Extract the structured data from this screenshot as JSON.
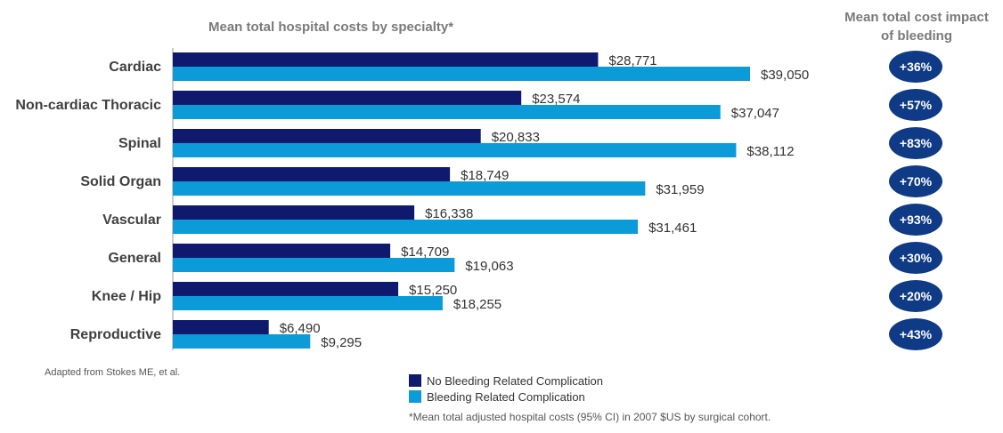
{
  "colors": {
    "no_bleeding": "#0f1a6e",
    "bleeding": "#0b9bd8",
    "badge": "#0f3a86"
  },
  "chart_data": {
    "type": "bar",
    "orientation": "horizontal",
    "title": "Mean total hospital costs by specialty*",
    "categories": [
      "Cardiac",
      "Non-cardiac Thoracic",
      "Spinal",
      "Solid Organ",
      "Vascular",
      "General",
      "Knee / Hip",
      "Reproductive"
    ],
    "series": [
      {
        "name": "No Bleeding Related Complication",
        "values": [
          28771,
          23574,
          20833,
          18749,
          16338,
          14709,
          15250,
          6490
        ],
        "labels": [
          "$28,771",
          "$23,574",
          "$20,833",
          "$18,749",
          "$16,338",
          "$14,709",
          "$15,250",
          "$6,490"
        ]
      },
      {
        "name": "Bleeding Related Complication",
        "values": [
          39050,
          37047,
          38112,
          31959,
          31461,
          19063,
          18255,
          9295
        ],
        "labels": [
          "$39,050",
          "$37,047",
          "$38,112",
          "$31,959",
          "$31,461",
          "$19,063",
          "$18,255",
          "$9,295"
        ]
      }
    ],
    "xlim": [
      0,
      40000
    ],
    "legend_position": "bottom",
    "impact_title": "Mean total cost impact of bleeding",
    "impact_values": [
      "+36%",
      "+57%",
      "+83%",
      "+70%",
      "+93%",
      "+30%",
      "+20%",
      "+43%"
    ]
  },
  "legend": {
    "no_bleeding": "No Bleeding Related Complication",
    "bleeding": "Bleeding Related Complication"
  },
  "source": "Adapted from Stokes ME, et al.",
  "footnote": "*Mean total adjusted hospital costs (95% CI) in 2007 $US by surgical cohort."
}
